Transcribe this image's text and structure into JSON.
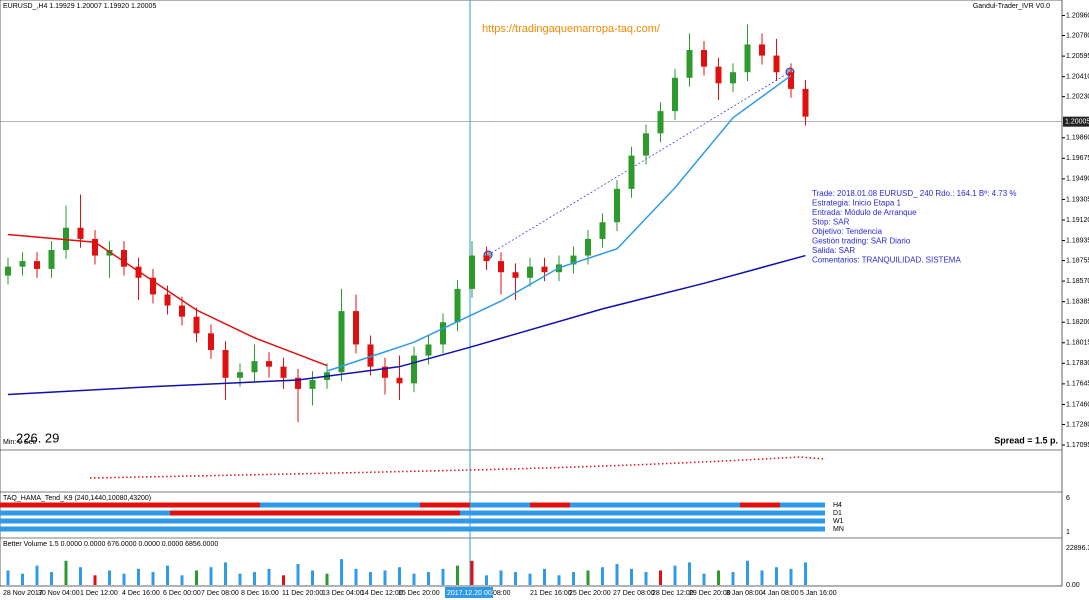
{
  "header": {
    "symbol_line": "EURUSD_,H4  1.19929 1.20007 1.19920 1.20005",
    "indicator": "Gandul-Trader_IVR V0.0",
    "url": "https://tradingaquemarropa-taq.com/",
    "counter": "226. 29",
    "timer": "Min: 0 Sec",
    "spread": "Spread = 1.5 p."
  },
  "price_chart": {
    "ylim": [
      1.1705,
      1.211
    ],
    "yticks": [
      {
        "value": 1.2096,
        "label": "1.20960"
      },
      {
        "value": 1.2078,
        "label": "1.20780"
      },
      {
        "value": 1.20595,
        "label": "1.20595"
      },
      {
        "value": 1.2041,
        "label": "1.20410"
      },
      {
        "value": 1.2023,
        "label": "1.20230"
      },
      {
        "value": 1.1986,
        "label": "1.19860"
      },
      {
        "value": 1.19675,
        "label": "1.19675"
      },
      {
        "value": 1.1949,
        "label": "1.19490"
      },
      {
        "value": 1.19305,
        "label": "1.19305"
      },
      {
        "value": 1.1912,
        "label": "1.19120"
      },
      {
        "value": 1.18935,
        "label": "1.18935"
      },
      {
        "value": 1.18755,
        "label": "1.18755"
      },
      {
        "value": 1.1857,
        "label": "1.18570"
      },
      {
        "value": 1.18385,
        "label": "1.18385"
      },
      {
        "value": 1.182,
        "label": "1.18200"
      },
      {
        "value": 1.18015,
        "label": "1.18015"
      },
      {
        "value": 1.1783,
        "label": "1.17830"
      },
      {
        "value": 1.17645,
        "label": "1.17645"
      },
      {
        "value": 1.1746,
        "label": "1.17460"
      },
      {
        "value": 1.1728,
        "label": "1.17280"
      },
      {
        "value": 1.17095,
        "label": "1.17095"
      }
    ],
    "current_price": {
      "value": 1.20005,
      "label": "1.20005"
    },
    "candles": [
      [
        1.1862,
        1.1878,
        1.1854,
        1.187
      ],
      [
        1.187,
        1.1883,
        1.1862,
        1.1875
      ],
      [
        1.1875,
        1.1883,
        1.186,
        1.1868
      ],
      [
        1.1868,
        1.1893,
        1.186,
        1.1885
      ],
      [
        1.1885,
        1.1925,
        1.1877,
        1.1905
      ],
      [
        1.1905,
        1.1935,
        1.1887,
        1.1895
      ],
      [
        1.1895,
        1.1903,
        1.1872,
        1.188
      ],
      [
        1.188,
        1.1893,
        1.186,
        1.1885
      ],
      [
        1.1885,
        1.1893,
        1.1862,
        1.187
      ],
      [
        1.187,
        1.1878,
        1.184,
        1.186
      ],
      [
        1.186,
        1.1868,
        1.1837,
        1.1845
      ],
      [
        1.1845,
        1.1853,
        1.1827,
        1.1835
      ],
      [
        1.1835,
        1.1843,
        1.1817,
        1.1825
      ],
      [
        1.1825,
        1.1833,
        1.1802,
        1.181
      ],
      [
        1.181,
        1.1818,
        1.1787,
        1.1795
      ],
      [
        1.1795,
        1.1803,
        1.175,
        1.177
      ],
      [
        1.177,
        1.1783,
        1.1762,
        1.1775
      ],
      [
        1.1775,
        1.18,
        1.1767,
        1.1785
      ],
      [
        1.1785,
        1.1793,
        1.177,
        1.178
      ],
      [
        1.178,
        1.1788,
        1.176,
        1.177
      ],
      [
        1.177,
        1.1778,
        1.173,
        1.176
      ],
      [
        1.176,
        1.1776,
        1.1745,
        1.1768
      ],
      [
        1.1768,
        1.1783,
        1.176,
        1.1775
      ],
      [
        1.1775,
        1.185,
        1.1767,
        1.183
      ],
      [
        1.183,
        1.1845,
        1.1792,
        1.18
      ],
      [
        1.18,
        1.1808,
        1.1772,
        1.178
      ],
      [
        1.178,
        1.1788,
        1.1755,
        1.177
      ],
      [
        1.177,
        1.179,
        1.175,
        1.1765
      ],
      [
        1.1765,
        1.1798,
        1.1757,
        1.179
      ],
      [
        1.179,
        1.1808,
        1.1782,
        1.18
      ],
      [
        1.18,
        1.1828,
        1.1792,
        1.182
      ],
      [
        1.182,
        1.1858,
        1.1812,
        1.185
      ],
      [
        1.185,
        1.1893,
        1.1842,
        1.188
      ],
      [
        1.188,
        1.1888,
        1.1867,
        1.1875
      ],
      [
        1.1875,
        1.1883,
        1.1845,
        1.1865
      ],
      [
        1.1865,
        1.1873,
        1.184,
        1.186
      ],
      [
        1.186,
        1.1878,
        1.1852,
        1.187
      ],
      [
        1.187,
        1.1878,
        1.1857,
        1.1865
      ],
      [
        1.1865,
        1.188,
        1.1857,
        1.1872
      ],
      [
        1.1872,
        1.1888,
        1.1864,
        1.188
      ],
      [
        1.188,
        1.1903,
        1.1872,
        1.1895
      ],
      [
        1.1895,
        1.1918,
        1.1887,
        1.191
      ],
      [
        1.191,
        1.1948,
        1.1902,
        1.194
      ],
      [
        1.194,
        1.1978,
        1.1932,
        1.197
      ],
      [
        1.197,
        1.1998,
        1.1962,
        1.199
      ],
      [
        1.199,
        1.2018,
        1.1982,
        1.201
      ],
      [
        1.201,
        1.2048,
        1.2002,
        1.204
      ],
      [
        1.204,
        1.208,
        1.2032,
        1.2065
      ],
      [
        1.2065,
        1.2073,
        1.2042,
        1.205
      ],
      [
        1.205,
        1.2058,
        1.202,
        1.2035
      ],
      [
        1.2035,
        1.2053,
        1.2027,
        1.2045
      ],
      [
        1.2045,
        1.2088,
        1.2037,
        1.207
      ],
      [
        1.207,
        1.208,
        1.2052,
        1.206
      ],
      [
        1.206,
        1.2075,
        1.2037,
        1.2045
      ],
      [
        1.2045,
        1.2053,
        1.2022,
        1.203
      ],
      [
        1.203,
        1.2038,
        1.1997,
        1.2005
      ]
    ],
    "lines": [
      {
        "color": "#e01010",
        "x": [
          0,
          6,
          13,
          17,
          22
        ],
        "values": [
          1.1899,
          1.1892,
          1.1831,
          1.1806,
          1.1781
        ]
      },
      {
        "color": "#2f9be8",
        "x": [
          22,
          28,
          34,
          38,
          42,
          46,
          50,
          54
        ],
        "values": [
          1.1776,
          1.1802,
          1.1839,
          1.1869,
          1.1886,
          1.1941,
          1.2004,
          1.2042
        ]
      },
      {
        "color": "#1010b0",
        "x": [
          0,
          10,
          20,
          27,
          32,
          41,
          48,
          55
        ],
        "values": [
          1.1755,
          1.1762,
          1.1768,
          1.178,
          1.1798,
          1.1832,
          1.1855,
          1.188
        ]
      }
    ]
  },
  "trade_info": [
    "Trade: 2018.01.08 EURUSD_ 240  Rdo.: 164.1  Bº: 4.73 %",
    "Estrategia: Inicio Etapa 1",
    "Entrada: Módulo de Arranque",
    "Stop: SAR",
    "Objetivo: Tendencia",
    "Gestión trading: SAR Diario",
    "Salida: SAR",
    "Comentarios: TRANQUILIDAD. SISTEMA"
  ],
  "mtf_panel": {
    "title": "TAQ_HAMA_Tend_K9 (240,1440,10080,43200)",
    "rows": [
      "H4",
      "D1",
      "W1",
      "MN"
    ],
    "scale_top": "6",
    "scale_bottom": "1"
  },
  "volume_panel": {
    "title": "Better Volume 1.5 0.0000 0.0000 676.0000 0.0000 0.0000 6856.0000",
    "ylim": [
      0,
      22896.3
    ],
    "yticks": [
      {
        "value": 0,
        "label": "0.00"
      },
      22896.3
    ],
    "values": [
      9000,
      7000,
      12000,
      8000,
      15000,
      11000,
      6000,
      9000,
      7000,
      10000,
      8000,
      12000,
      6000,
      9000,
      11000,
      14000,
      7000,
      8000,
      10000,
      6000,
      13000,
      9000,
      7000,
      16000,
      10000,
      8000,
      9000,
      11000,
      7000,
      8000,
      10000,
      12000,
      15000,
      6000,
      9000,
      8000,
      7000,
      10000,
      6000,
      8000,
      9000,
      11000,
      13000,
      10000,
      8000,
      9000,
      12000,
      14000,
      7000,
      9000,
      8000,
      15000,
      9000,
      11000,
      10000,
      14000
    ]
  },
  "time_axis": [
    "28 Nov 2017",
    "30 Nov 04:00",
    "1 Dec 12:00",
    "4 Dec 16:00",
    "6 Dec 00:00",
    "7 Dec 08:00",
    "8 Dec 16:00",
    "11 Dec 20:00",
    "13 Dec 04:00",
    "14 Dec 12:00",
    "15 Dec 20:00",
    "2017.12.20 00:00",
    "08:00",
    "21 Dec 16:00",
    "25 Dec 20:00",
    "27 Dec 08:00",
    "28 Dec 12:00",
    "29 Dec 20:00",
    "3 Jan 08:00",
    "4 Jan 08:00",
    "5 Jan 16:00"
  ]
}
